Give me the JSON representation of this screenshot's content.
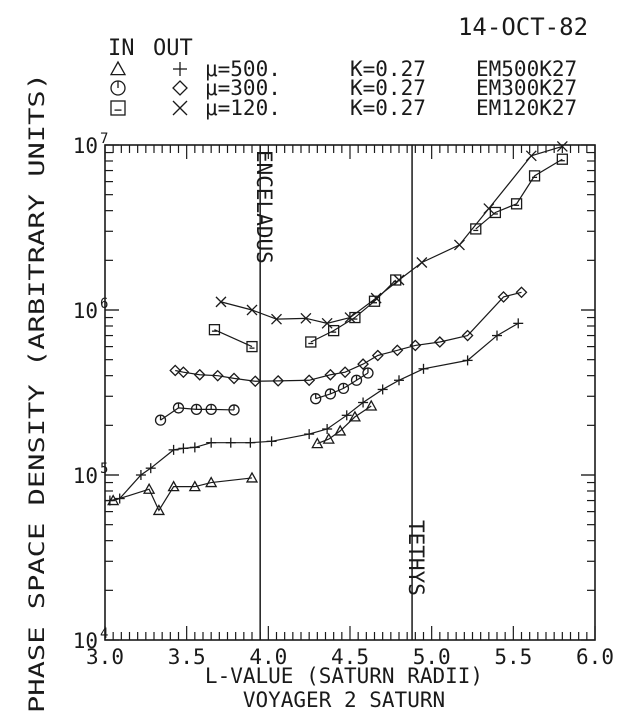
{
  "chart_data": {
    "type": "line",
    "title": "VOYAGER 2 SATURN",
    "date": "14-OCT-82",
    "xlabel": "L-VALUE (SATURN RADII)",
    "ylabel": "PHASE SPACE DENSITY (ARBITRARY UNITS)",
    "xlim": [
      3.0,
      6.0
    ],
    "ylim": [
      10000,
      10000000
    ],
    "yscale": "log",
    "xticks": [
      "3.0",
      "3.5",
      "4.0",
      "4.5",
      "5.0",
      "5.5",
      "6.0"
    ],
    "yticks": [
      {
        "base": "10",
        "exp": "4"
      },
      {
        "base": "10",
        "exp": "5"
      },
      {
        "base": "10",
        "exp": "6"
      },
      {
        "base": "10",
        "exp": "7"
      }
    ],
    "legend": {
      "in_label": "IN",
      "out_label": "OUT",
      "entries": [
        {
          "mu": "μ=500.",
          "k": "K=0.27",
          "code": "EM500K27",
          "in_marker": "triangle",
          "out_marker": "plus"
        },
        {
          "mu": "μ=300.",
          "k": "K=0.27",
          "code": "EM300K27",
          "in_marker": "circle",
          "out_marker": "diamond"
        },
        {
          "mu": "μ=120.",
          "k": "K=0.27",
          "code": "EM120K27",
          "in_marker": "square",
          "out_marker": "cross"
        }
      ]
    },
    "annotations": [
      {
        "text": "ENCELADUS",
        "x": 3.95
      },
      {
        "text": "TETHYS",
        "x": 4.88
      }
    ],
    "series": [
      {
        "marker": "triangle",
        "points": [
          [
            3.05,
            70000
          ],
          [
            3.27,
            82000
          ],
          [
            3.33,
            61000
          ],
          [
            3.42,
            85000
          ],
          [
            3.55,
            85000
          ],
          [
            3.65,
            90000
          ],
          [
            3.9,
            96000
          ]
        ]
      },
      {
        "marker": "triangle",
        "points": [
          [
            4.3,
            155000
          ],
          [
            4.37,
            165000
          ],
          [
            4.44,
            185000
          ],
          [
            4.53,
            225000
          ],
          [
            4.63,
            262000
          ]
        ]
      },
      {
        "marker": "plus",
        "points": [
          [
            3.03,
            70000
          ],
          [
            3.09,
            72000
          ],
          [
            3.22,
            100000
          ],
          [
            3.28,
            110000
          ],
          [
            3.42,
            142000
          ],
          [
            3.48,
            145000
          ],
          [
            3.55,
            147000
          ],
          [
            3.65,
            157000
          ],
          [
            3.77,
            157000
          ],
          [
            3.89,
            157000
          ],
          [
            4.02,
            160000
          ],
          [
            4.25,
            177000
          ],
          [
            4.36,
            190000
          ],
          [
            4.48,
            230000
          ],
          [
            4.58,
            275000
          ],
          [
            4.7,
            330000
          ],
          [
            4.8,
            375000
          ],
          [
            4.95,
            440000
          ],
          [
            5.22,
            495000
          ],
          [
            5.4,
            700000
          ],
          [
            5.53,
            830000
          ]
        ]
      },
      {
        "marker": "circle",
        "points": [
          [
            3.34,
            215000
          ],
          [
            3.45,
            255000
          ],
          [
            3.56,
            250000
          ],
          [
            3.65,
            250000
          ],
          [
            3.79,
            248000
          ]
        ]
      },
      {
        "marker": "circle",
        "points": [
          [
            4.29,
            290000
          ],
          [
            4.38,
            310000
          ],
          [
            4.46,
            335000
          ],
          [
            4.54,
            375000
          ],
          [
            4.61,
            415000
          ]
        ]
      },
      {
        "marker": "diamond",
        "points": [
          [
            3.43,
            430000
          ],
          [
            3.48,
            420000
          ],
          [
            3.58,
            405000
          ],
          [
            3.69,
            400000
          ],
          [
            3.79,
            385000
          ],
          [
            3.92,
            370000
          ],
          [
            4.06,
            372000
          ],
          [
            4.25,
            375000
          ],
          [
            4.38,
            405000
          ],
          [
            4.47,
            420000
          ],
          [
            4.58,
            470000
          ],
          [
            4.67,
            530000
          ],
          [
            4.79,
            570000
          ],
          [
            4.9,
            610000
          ],
          [
            5.05,
            640000
          ],
          [
            5.22,
            700000
          ],
          [
            5.44,
            1200000
          ],
          [
            5.55,
            1280000
          ]
        ]
      },
      {
        "marker": "square",
        "points": [
          [
            3.67,
            760000
          ],
          [
            3.9,
            600000
          ]
        ]
      },
      {
        "marker": "square",
        "points": [
          [
            4.26,
            640000
          ],
          [
            4.4,
            750000
          ],
          [
            4.53,
            900000
          ],
          [
            4.65,
            1130000
          ],
          [
            4.78,
            1520000
          ]
        ]
      },
      {
        "marker": "square",
        "points": [
          [
            5.27,
            3100000
          ],
          [
            5.39,
            3900000
          ],
          [
            5.52,
            4400000
          ],
          [
            5.63,
            6500000
          ],
          [
            5.8,
            8200000
          ]
        ]
      },
      {
        "marker": "cross",
        "points": [
          [
            3.71,
            1120000
          ],
          [
            3.9,
            1000000
          ],
          [
            4.05,
            880000
          ],
          [
            4.23,
            890000
          ],
          [
            4.36,
            830000
          ],
          [
            4.5,
            900000
          ],
          [
            4.66,
            1180000
          ],
          [
            4.8,
            1520000
          ],
          [
            4.94,
            1940000
          ],
          [
            5.17,
            2480000
          ],
          [
            5.35,
            4120000
          ],
          [
            5.61,
            8600000
          ],
          [
            5.8,
            9800000
          ]
        ]
      }
    ]
  }
}
